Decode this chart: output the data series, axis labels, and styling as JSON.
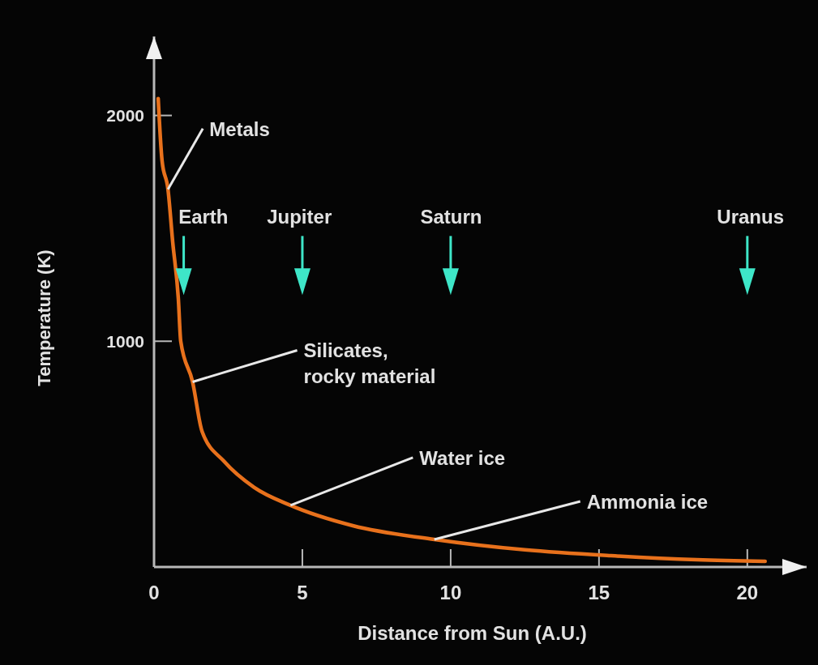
{
  "chart_data": {
    "type": "line",
    "xlabel": "Distance from Sun (A.U.)",
    "ylabel": "Temperature (K)",
    "x": [
      0.14,
      0.27,
      0.47,
      0.63,
      0.82,
      0.9,
      1.3,
      1.62,
      2.36,
      3.37,
      4.6,
      6.7,
      9.45,
      12.5,
      15.4,
      18.3,
      20.6
    ],
    "values": [
      2075,
      1800,
      1673,
      1439,
      1187,
      1000,
      820,
      600,
      468,
      353,
      273,
      183,
      122,
      76,
      50,
      32,
      25
    ],
    "color": "#e8711c",
    "xlim": [
      0,
      22
    ],
    "ylim": [
      0,
      2350
    ],
    "xticks": [
      0,
      5,
      10,
      15,
      20
    ],
    "yticks": [
      1000,
      2000
    ],
    "annotations": [
      {
        "text": "Metals",
        "x": 0.47,
        "y": 1673
      },
      {
        "text": "Silicates,\nrocky material",
        "x": 1.3,
        "y": 820
      },
      {
        "text": "Water ice",
        "x": 4.6,
        "y": 273
      },
      {
        "text": "Ammonia ice",
        "x": 9.45,
        "y": 122
      }
    ],
    "ref_lines": [
      {
        "axis": "x",
        "value": 1,
        "label": "Earth"
      },
      {
        "axis": "x",
        "value": 5,
        "label": "Jupiter"
      },
      {
        "axis": "x",
        "value": 10,
        "label": "Saturn"
      },
      {
        "axis": "x",
        "value": 20,
        "label": "Uranus"
      }
    ]
  }
}
